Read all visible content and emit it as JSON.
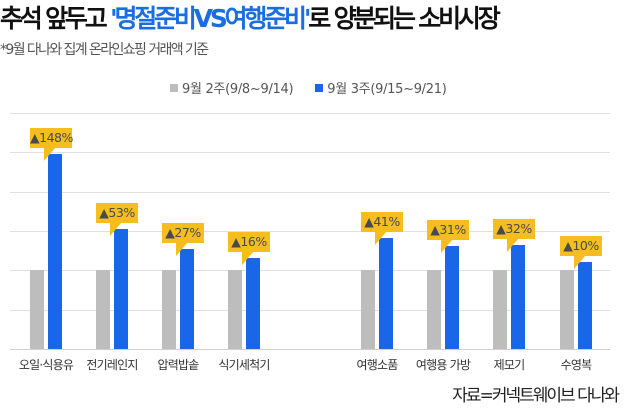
{
  "header": {
    "title_prefix": "추석 앞두고 ",
    "title_highlight": "'명절준비VS여행준비'",
    "title_suffix": "로 양분되는 소비시장",
    "subtitle": "*9월 다나와 집계 온라인쇼핑 거래액 기준"
  },
  "legend": [
    {
      "label": "9월 2주(9/8~9/14)",
      "color": "#bdbdbd"
    },
    {
      "label": "9월 3주(9/15~9/21)",
      "color": "#1a66e8"
    }
  ],
  "source": "자료=커넥트웨이브 다나와",
  "colors": {
    "week2": "#bdbdbd",
    "week3": "#1a66e8",
    "callout": "#f5be1e",
    "highlight": "#1a6fe0"
  },
  "chart_data": {
    "type": "bar",
    "title": "추석 앞두고 '명절준비VS여행준비'로 양분되는 소비시장",
    "subtitle": "*9월 다나와 집계 온라인쇼핑 거래액 기준",
    "categories": [
      "오일·식용유",
      "전기레인지",
      "압력밥솥",
      "식기세척기",
      "여행소품",
      "여행용 가방",
      "제모기",
      "수영복"
    ],
    "series": [
      {
        "name": "9월 2주(9/8~9/14)",
        "values": [
          100,
          100,
          100,
          100,
          100,
          100,
          100,
          100
        ]
      },
      {
        "name": "9월 3주(9/15~9/21)",
        "values": [
          248,
          153,
          127,
          116,
          141,
          131,
          132,
          110
        ]
      }
    ],
    "annotations": [
      "▲148%",
      "▲53%",
      "▲27%",
      "▲16%",
      "▲41%",
      "▲31%",
      "▲32%",
      "▲10%"
    ],
    "growth_pct": [
      148,
      53,
      27,
      16,
      41,
      31,
      32,
      10
    ],
    "xlabel": "",
    "ylabel": "",
    "ylim": [
      0,
      300
    ],
    "grid": true,
    "legend_position": "top",
    "source": "자료=커넥트웨이브 다나와"
  }
}
